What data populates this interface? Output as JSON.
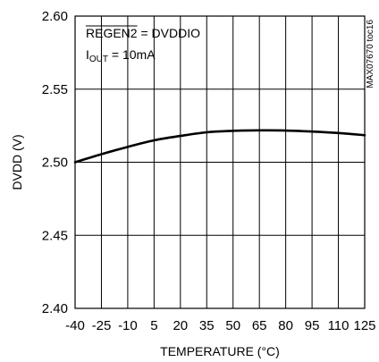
{
  "chart_data": {
    "type": "line",
    "title": "",
    "xlabel": "TEMPERATURE (°C)",
    "ylabel": "DVDD (V)",
    "xlim": [
      -40,
      125
    ],
    "ylim": [
      2.4,
      2.6
    ],
    "x_ticks": [
      -40,
      -25,
      -10,
      5,
      20,
      35,
      50,
      65,
      80,
      95,
      110,
      125
    ],
    "x_tick_labels": [
      "-40",
      "-25",
      "-10",
      "5",
      "20",
      "35",
      "50",
      "65",
      "80",
      "95",
      "110",
      "125"
    ],
    "y_ticks": [
      2.4,
      2.45,
      2.5,
      2.55,
      2.6
    ],
    "y_tick_labels": [
      "2.40",
      "2.45",
      "2.50",
      "2.55",
      "2.60"
    ],
    "grid": true,
    "legend": "none",
    "annotations": {
      "line1": "REGEN2 = DVDDIO",
      "line1_overbar": "REGEN2",
      "line2_main": "I",
      "line2_sub": "OUT",
      "line2_rest": " = 10mA",
      "figure_code": "MAX07670 toc16"
    },
    "series": [
      {
        "x": [
          -40,
          -25,
          -10,
          5,
          20,
          35,
          50,
          65,
          80,
          95,
          110,
          125
        ],
        "values": [
          2.5,
          2.5055,
          2.5105,
          2.515,
          2.518,
          2.5205,
          2.5215,
          2.5218,
          2.5217,
          2.521,
          2.52,
          2.5185
        ]
      }
    ]
  }
}
